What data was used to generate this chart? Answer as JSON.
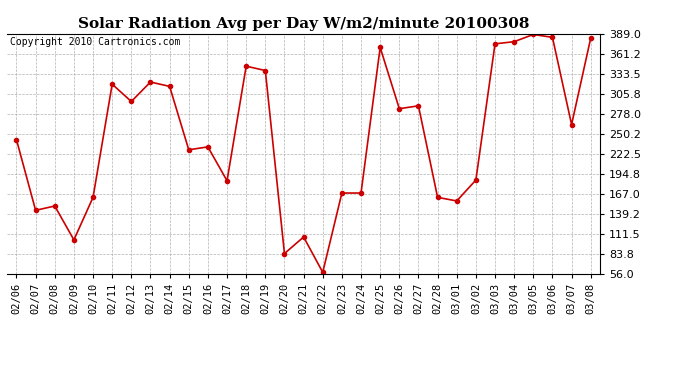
{
  "title": "Solar Radiation Avg per Day W/m2/minute 20100308",
  "copyright": "Copyright 2010 Cartronics.com",
  "dates": [
    "02/06",
    "02/07",
    "02/08",
    "02/09",
    "02/10",
    "02/11",
    "02/12",
    "02/13",
    "02/14",
    "02/15",
    "02/16",
    "02/17",
    "02/18",
    "02/19",
    "02/20",
    "02/21",
    "02/22",
    "02/23",
    "02/24",
    "02/25",
    "02/26",
    "02/27",
    "02/28",
    "03/01",
    "03/02",
    "03/03",
    "03/04",
    "03/05",
    "03/06",
    "03/07",
    "03/08"
  ],
  "values": [
    242,
    144,
    150,
    103,
    162,
    319,
    295,
    322,
    316,
    228,
    232,
    185,
    344,
    338,
    84,
    107,
    58,
    168,
    168,
    370,
    285,
    289,
    162,
    157,
    186,
    375,
    378,
    388,
    384,
    263,
    383
  ],
  "line_color": "#cc0000",
  "marker": "o",
  "marker_size": 3,
  "ylim": [
    56.0,
    389.0
  ],
  "yticks": [
    56.0,
    83.8,
    111.5,
    139.2,
    167.0,
    194.8,
    222.5,
    250.2,
    278.0,
    305.8,
    333.5,
    361.2,
    389.0
  ],
  "background_color": "#ffffff",
  "grid_color": "#aaaaaa",
  "title_fontsize": 11,
  "copyright_fontsize": 7,
  "tick_fontsize": 7.5,
  "ytick_fontsize": 8,
  "linewidth": 1.2
}
